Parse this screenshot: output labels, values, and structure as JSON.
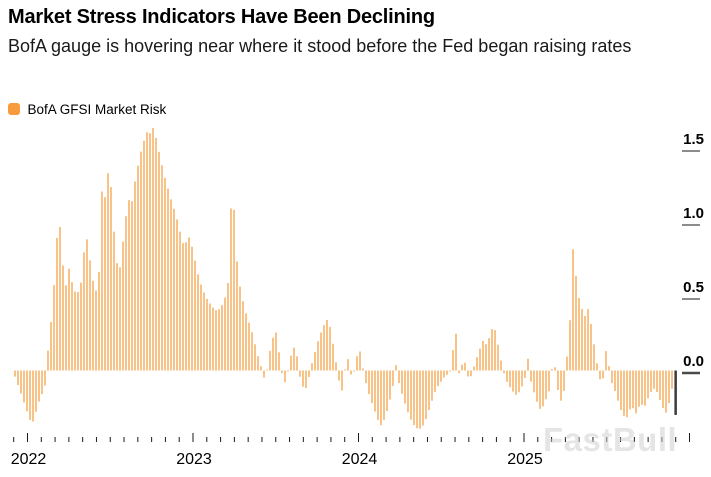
{
  "header": {
    "title": "Market Stress Indicators Have Been Declining",
    "subtitle": "BofA gauge is hovering near where it stood before the Fed began raising rates"
  },
  "legend": {
    "label": "BofA GFSI Market Risk",
    "swatch_color": "#F79B3D"
  },
  "watermark": "FastBull",
  "chart_data": {
    "type": "bar",
    "title": "Market Stress Indicators Have Been Declining",
    "grid": "off",
    "legend_position": "top-left",
    "colors": {
      "bar": "#F7C389",
      "current_bar": "#3C3C3C",
      "axis_tick": "#1a1a1a",
      "y_tick": "#8c8c8c",
      "y_tick_zero": "#4a4a4a"
    },
    "y_axis": {
      "side": "right",
      "range": [
        -0.55,
        1.75
      ],
      "ticks": [
        {
          "label": "1.5",
          "value": 1.5
        },
        {
          "label": "1.0",
          "value": 1.0
        },
        {
          "label": "0.5",
          "value": 0.5
        },
        {
          "label": "0.0",
          "value": 0.0
        }
      ]
    },
    "x_axis": {
      "range_decimal_years": [
        2021.92,
        2026.02
      ],
      "minor_tick_unit": "month",
      "year_labels": [
        {
          "label": "2022",
          "t": 2022
        },
        {
          "label": "2023",
          "t": 2023
        },
        {
          "label": "2024",
          "t": 2024
        },
        {
          "label": "2025",
          "t": 2025
        }
      ]
    },
    "series": [
      {
        "name": "BofA GFSI Market Risk",
        "color": "#F7C389",
        "points": [
          [
            2021.918,
            -0.04
          ],
          [
            2021.95,
            -0.14
          ],
          [
            2021.98,
            -0.24
          ],
          [
            2022.005,
            -0.32
          ],
          [
            2022.02,
            -0.37
          ],
          [
            2022.04,
            -0.3
          ],
          [
            2022.06,
            -0.22
          ],
          [
            2022.085,
            -0.15
          ],
          [
            2022.1,
            -0.1
          ],
          [
            2022.112,
            0.08
          ],
          [
            2022.127,
            0.22
          ],
          [
            2022.142,
            0.4
          ],
          [
            2022.157,
            0.62
          ],
          [
            2022.17,
            0.85
          ],
          [
            2022.181,
            1.08
          ],
          [
            2022.192,
            0.95
          ],
          [
            2022.205,
            0.75
          ],
          [
            2022.218,
            0.6
          ],
          [
            2022.232,
            0.56
          ],
          [
            2022.246,
            0.7
          ],
          [
            2022.26,
            0.61
          ],
          [
            2022.275,
            0.54
          ],
          [
            2022.295,
            0.52
          ],
          [
            2022.315,
            0.57
          ],
          [
            2022.33,
            0.73
          ],
          [
            2022.345,
            0.92
          ],
          [
            2022.36,
            0.86
          ],
          [
            2022.375,
            0.71
          ],
          [
            2022.392,
            0.59
          ],
          [
            2022.408,
            0.54
          ],
          [
            2022.423,
            0.62
          ],
          [
            2022.436,
            0.82
          ],
          [
            2022.446,
            1.3
          ],
          [
            2022.456,
            1.14
          ],
          [
            2022.47,
            1.21
          ],
          [
            2022.486,
            1.4
          ],
          [
            2022.5,
            1.22
          ],
          [
            2022.515,
            0.96
          ],
          [
            2022.53,
            0.76
          ],
          [
            2022.545,
            0.65
          ],
          [
            2022.56,
            0.74
          ],
          [
            2022.576,
            0.93
          ],
          [
            2022.59,
            1.05
          ],
          [
            2022.605,
            1.16
          ],
          [
            2022.62,
            1.1
          ],
          [
            2022.636,
            1.23
          ],
          [
            2022.652,
            1.33
          ],
          [
            2022.668,
            1.42
          ],
          [
            2022.684,
            1.5
          ],
          [
            2022.7,
            1.56
          ],
          [
            2022.716,
            1.61
          ],
          [
            2022.73,
            1.63
          ],
          [
            2022.741,
            1.56
          ],
          [
            2022.752,
            1.64
          ],
          [
            2022.765,
            1.6
          ],
          [
            2022.78,
            1.52
          ],
          [
            2022.8,
            1.42
          ],
          [
            2022.82,
            1.32
          ],
          [
            2022.84,
            1.24
          ],
          [
            2022.86,
            1.16
          ],
          [
            2022.88,
            1.09
          ],
          [
            2022.9,
            1.01
          ],
          [
            2022.915,
            0.94
          ],
          [
            2022.93,
            0.87
          ],
          [
            2022.945,
            0.83
          ],
          [
            2022.962,
            0.92
          ],
          [
            2022.977,
            0.88
          ],
          [
            2022.992,
            0.82
          ],
          [
            2023.01,
            0.72
          ],
          [
            2023.03,
            0.62
          ],
          [
            2023.055,
            0.54
          ],
          [
            2023.08,
            0.48
          ],
          [
            2023.11,
            0.43
          ],
          [
            2023.14,
            0.4
          ],
          [
            2023.165,
            0.43
          ],
          [
            2023.19,
            0.5
          ],
          [
            2023.205,
            0.58
          ],
          [
            2023.218,
            0.9
          ],
          [
            2023.23,
            1.32
          ],
          [
            2023.243,
            1.06
          ],
          [
            2023.256,
            0.78
          ],
          [
            2023.27,
            0.62
          ],
          [
            2023.285,
            0.52
          ],
          [
            2023.3,
            0.45
          ],
          [
            2023.32,
            0.36
          ],
          [
            2023.34,
            0.3
          ],
          [
            2023.36,
            0.22
          ],
          [
            2023.38,
            0.12
          ],
          [
            2023.4,
            0.05
          ],
          [
            2023.418,
            -0.03
          ],
          [
            2023.432,
            -0.08
          ],
          [
            2023.447,
            0.06
          ],
          [
            2023.462,
            0.15
          ],
          [
            2023.477,
            0.22
          ],
          [
            2023.492,
            0.28
          ],
          [
            2023.507,
            0.18
          ],
          [
            2023.522,
            0.05
          ],
          [
            2023.535,
            -0.04
          ],
          [
            2023.55,
            -0.08
          ],
          [
            2023.565,
            -0.02
          ],
          [
            2023.58,
            0.08
          ],
          [
            2023.595,
            0.13
          ],
          [
            2023.61,
            0.17
          ],
          [
            2023.625,
            0.08
          ],
          [
            2023.64,
            -0.04
          ],
          [
            2023.655,
            -0.1
          ],
          [
            2023.67,
            -0.14
          ],
          [
            2023.685,
            -0.09
          ],
          [
            2023.7,
            -0.02
          ],
          [
            2023.715,
            0.06
          ],
          [
            2023.735,
            0.14
          ],
          [
            2023.755,
            0.22
          ],
          [
            2023.775,
            0.28
          ],
          [
            2023.795,
            0.33
          ],
          [
            2023.81,
            0.35
          ],
          [
            2023.825,
            0.28
          ],
          [
            2023.84,
            0.18
          ],
          [
            2023.855,
            0.08
          ],
          [
            2023.87,
            -0.04
          ],
          [
            2023.885,
            -0.11
          ],
          [
            2023.9,
            -0.15
          ],
          [
            2023.915,
            0.04
          ],
          [
            2023.93,
            0.08
          ],
          [
            2023.945,
            -0.02
          ],
          [
            2023.96,
            -0.05
          ],
          [
            2023.975,
            0.05
          ],
          [
            2023.99,
            0.12
          ],
          [
            2024.005,
            0.13
          ],
          [
            2024.02,
            0.02
          ],
          [
            2024.04,
            -0.09
          ],
          [
            2024.06,
            -0.17
          ],
          [
            2024.085,
            -0.25
          ],
          [
            2024.11,
            -0.33
          ],
          [
            2024.13,
            -0.37
          ],
          [
            2024.15,
            -0.33
          ],
          [
            2024.17,
            -0.26
          ],
          [
            2024.19,
            -0.17
          ],
          [
            2024.207,
            -0.08
          ],
          [
            2024.22,
            0.04
          ],
          [
            2024.235,
            -0.07
          ],
          [
            2024.26,
            -0.17
          ],
          [
            2024.285,
            -0.26
          ],
          [
            2024.31,
            -0.33
          ],
          [
            2024.335,
            -0.38
          ],
          [
            2024.36,
            -0.4
          ],
          [
            2024.385,
            -0.37
          ],
          [
            2024.405,
            -0.32
          ],
          [
            2024.425,
            -0.25
          ],
          [
            2024.445,
            -0.18
          ],
          [
            2024.465,
            -0.12
          ],
          [
            2024.49,
            -0.08
          ],
          [
            2024.515,
            -0.04
          ],
          [
            2024.54,
            -0.02
          ],
          [
            2024.56,
            0.03
          ],
          [
            2024.576,
            0.38
          ],
          [
            2024.59,
            0.12
          ],
          [
            2024.603,
            -0.04
          ],
          [
            2024.617,
            0.03
          ],
          [
            2024.632,
            0.09
          ],
          [
            2024.648,
            -0.02
          ],
          [
            2024.663,
            -0.06
          ],
          [
            2024.678,
            -0.03
          ],
          [
            2024.695,
            0.04
          ],
          [
            2024.713,
            0.1
          ],
          [
            2024.732,
            0.16
          ],
          [
            2024.75,
            0.21
          ],
          [
            2024.768,
            0.17
          ],
          [
            2024.786,
            0.23
          ],
          [
            2024.8,
            0.28
          ],
          [
            2024.815,
            0.29
          ],
          [
            2024.83,
            0.22
          ],
          [
            2024.845,
            0.12
          ],
          [
            2024.86,
            0.04
          ],
          [
            2024.878,
            -0.04
          ],
          [
            2024.896,
            -0.09
          ],
          [
            2024.914,
            -0.12
          ],
          [
            2024.932,
            -0.15
          ],
          [
            2024.95,
            -0.17
          ],
          [
            2024.968,
            -0.14
          ],
          [
            2024.985,
            -0.1
          ],
          [
            2025.0,
            -0.05
          ],
          [
            2025.017,
            0.09
          ],
          [
            2025.035,
            -0.07
          ],
          [
            2025.055,
            -0.15
          ],
          [
            2025.075,
            -0.22
          ],
          [
            2025.095,
            -0.27
          ],
          [
            2025.115,
            -0.23
          ],
          [
            2025.135,
            -0.17
          ],
          [
            2025.155,
            -0.11
          ],
          [
            2025.172,
            0.14
          ],
          [
            2025.19,
            -0.09
          ],
          [
            2025.208,
            -0.17
          ],
          [
            2025.222,
            -0.22
          ],
          [
            2025.237,
            -0.13
          ],
          [
            2025.25,
            0.05
          ],
          [
            2025.263,
            0.2
          ],
          [
            2025.277,
            0.42
          ],
          [
            2025.292,
            0.88
          ],
          [
            2025.307,
            0.65
          ],
          [
            2025.322,
            0.51
          ],
          [
            2025.337,
            0.44
          ],
          [
            2025.352,
            0.39
          ],
          [
            2025.367,
            0.36
          ],
          [
            2025.382,
            0.42
          ],
          [
            2025.398,
            0.32
          ],
          [
            2025.415,
            0.19
          ],
          [
            2025.432,
            0.07
          ],
          [
            2025.45,
            -0.05
          ],
          [
            2025.468,
            -0.1
          ],
          [
            2025.485,
            0.14
          ],
          [
            2025.5,
            0.11
          ],
          [
            2025.515,
            -0.05
          ],
          [
            2025.53,
            -0.1
          ],
          [
            2025.548,
            -0.15
          ],
          [
            2025.566,
            -0.22
          ],
          [
            2025.584,
            -0.28
          ],
          [
            2025.6,
            -0.31
          ],
          [
            2025.615,
            -0.32
          ],
          [
            2025.63,
            -0.27
          ],
          [
            2025.648,
            -0.24
          ],
          [
            2025.666,
            -0.3
          ],
          [
            2025.684,
            -0.26
          ],
          [
            2025.7,
            -0.21
          ],
          [
            2025.716,
            -0.26
          ],
          [
            2025.732,
            -0.22
          ],
          [
            2025.75,
            -0.17
          ],
          [
            2025.768,
            -0.13
          ],
          [
            2025.786,
            -0.12
          ],
          [
            2025.804,
            -0.16
          ],
          [
            2025.822,
            -0.22
          ],
          [
            2025.84,
            -0.27
          ],
          [
            2025.856,
            -0.29
          ],
          [
            2025.872,
            -0.21
          ],
          [
            2025.886,
            -0.13
          ],
          [
            2025.9,
            -0.09
          ]
        ]
      }
    ],
    "current_bar": {
      "t": 2025.916,
      "value": -0.3,
      "color": "#3C3C3C"
    }
  }
}
